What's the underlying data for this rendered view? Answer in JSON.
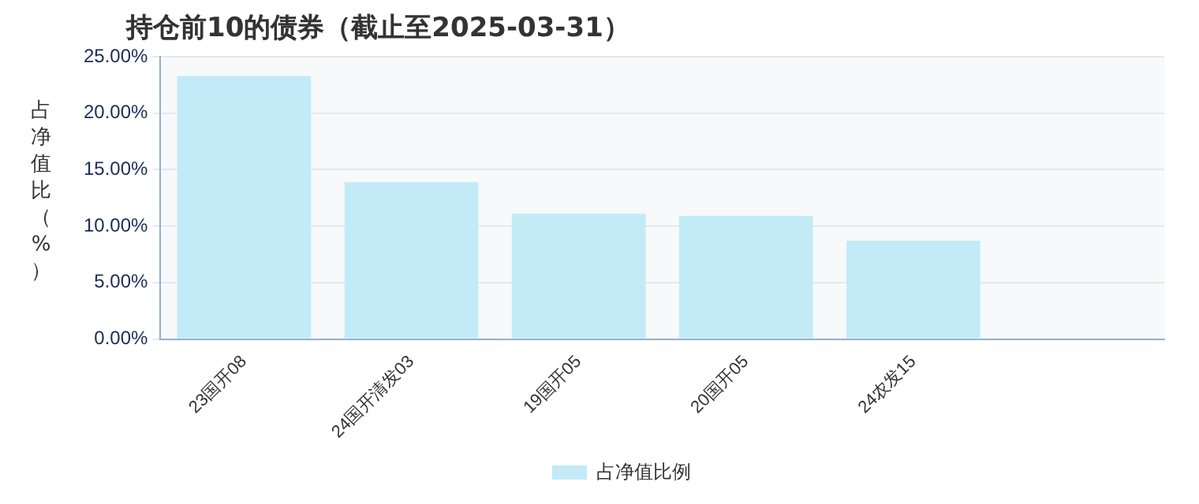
{
  "chart_data": {
    "type": "bar",
    "title": "持仓前10的债券（截止至2025-03-31）",
    "ylabel": "占净值比（%）",
    "categories": [
      "23国开08",
      "24国开清发03",
      "19国开05",
      "20国开05",
      "24农发15",
      null
    ],
    "series": [
      {
        "name": "占净值比例",
        "color": "#c2ebf7",
        "values": [
          23.3,
          13.9,
          11.1,
          10.9,
          8.7,
          null
        ]
      }
    ],
    "ylim": [
      0,
      25
    ],
    "yticks": [
      {
        "value": 0,
        "label": "0.00%"
      },
      {
        "value": 5,
        "label": "5.00%"
      },
      {
        "value": 10,
        "label": "10.00%"
      },
      {
        "value": 15,
        "label": "15.00%"
      },
      {
        "value": 20,
        "label": "20.00%"
      },
      {
        "value": 25,
        "label": "25.00%"
      }
    ],
    "grid": "y",
    "legend": "bottom"
  }
}
